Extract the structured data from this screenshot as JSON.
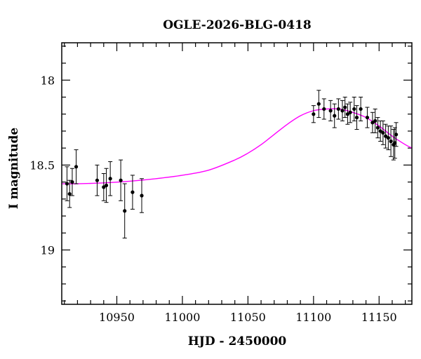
{
  "chart_data": {
    "type": "scatter",
    "title": "OGLE-2026-BLG-0418",
    "xlabel": "HJD - 2450000",
    "ylabel": "I magnitude",
    "xlim": [
      10908,
      11175
    ],
    "ylim": [
      19.32,
      17.78
    ],
    "y_inverted": true,
    "x_ticks": [
      10950,
      11000,
      11050,
      11100,
      11150
    ],
    "x_ticks_minor_step": 10,
    "y_ticks": [
      18,
      18.5,
      19
    ],
    "y_tick_labels": [
      "18",
      "18.5",
      "19"
    ],
    "y_ticks_minor_step": 0.1,
    "grid": false,
    "colors": {
      "points": "#000000",
      "model": "#ff00ff"
    },
    "series": [
      {
        "kind": "points_with_errors",
        "points": [
          {
            "x": 10912,
            "y": 18.61,
            "err": 0.1
          },
          {
            "x": 10914,
            "y": 18.67,
            "err": 0.08
          },
          {
            "x": 10916,
            "y": 18.6,
            "err": 0.08
          },
          {
            "x": 10919,
            "y": 18.51,
            "err": 0.1
          },
          {
            "x": 10935,
            "y": 18.59,
            "err": 0.09
          },
          {
            "x": 10940,
            "y": 18.63,
            "err": 0.08
          },
          {
            "x": 10942,
            "y": 18.62,
            "err": 0.1
          },
          {
            "x": 10945,
            "y": 18.58,
            "err": 0.1
          },
          {
            "x": 10953,
            "y": 18.59,
            "err": 0.12
          },
          {
            "x": 10956,
            "y": 18.77,
            "err": 0.16
          },
          {
            "x": 10962,
            "y": 18.66,
            "err": 0.1
          },
          {
            "x": 10969,
            "y": 18.68,
            "err": 0.1
          },
          {
            "x": 11100,
            "y": 18.2,
            "err": 0.05
          },
          {
            "x": 11104,
            "y": 18.14,
            "err": 0.08
          },
          {
            "x": 11108,
            "y": 18.17,
            "err": 0.06
          },
          {
            "x": 11113,
            "y": 18.18,
            "err": 0.06
          },
          {
            "x": 11116,
            "y": 18.21,
            "err": 0.07
          },
          {
            "x": 11119,
            "y": 18.17,
            "err": 0.06
          },
          {
            "x": 11122,
            "y": 18.18,
            "err": 0.06
          },
          {
            "x": 11124,
            "y": 18.16,
            "err": 0.06
          },
          {
            "x": 11126,
            "y": 18.2,
            "err": 0.06
          },
          {
            "x": 11128,
            "y": 18.19,
            "err": 0.06
          },
          {
            "x": 11131,
            "y": 18.17,
            "err": 0.07
          },
          {
            "x": 11133,
            "y": 18.22,
            "err": 0.07
          },
          {
            "x": 11136,
            "y": 18.17,
            "err": 0.07
          },
          {
            "x": 11141,
            "y": 18.22,
            "err": 0.06
          },
          {
            "x": 11145,
            "y": 18.25,
            "err": 0.06
          },
          {
            "x": 11147,
            "y": 18.24,
            "err": 0.07
          },
          {
            "x": 11149,
            "y": 18.28,
            "err": 0.06
          },
          {
            "x": 11151,
            "y": 18.3,
            "err": 0.06
          },
          {
            "x": 11153,
            "y": 18.31,
            "err": 0.07
          },
          {
            "x": 11155,
            "y": 18.33,
            "err": 0.07
          },
          {
            "x": 11157,
            "y": 18.34,
            "err": 0.07
          },
          {
            "x": 11159,
            "y": 18.36,
            "err": 0.09
          },
          {
            "x": 11161,
            "y": 18.38,
            "err": 0.09
          },
          {
            "x": 11162,
            "y": 18.37,
            "err": 0.09
          },
          {
            "x": 11163,
            "y": 18.32,
            "err": 0.07
          }
        ]
      },
      {
        "kind": "model_curve",
        "x": [
          10908,
          10920,
          10940,
          10960,
          10980,
          11000,
          11020,
          11040,
          11050,
          11060,
          11070,
          11080,
          11090,
          11100,
          11110,
          11120,
          11130,
          11140,
          11150,
          11160,
          11170,
          11175
        ],
        "y": [
          18.61,
          18.61,
          18.605,
          18.595,
          18.58,
          18.56,
          18.53,
          18.47,
          18.43,
          18.38,
          18.32,
          18.26,
          18.21,
          18.18,
          18.17,
          18.17,
          18.19,
          18.22,
          18.27,
          18.33,
          18.38,
          18.4
        ]
      }
    ]
  }
}
